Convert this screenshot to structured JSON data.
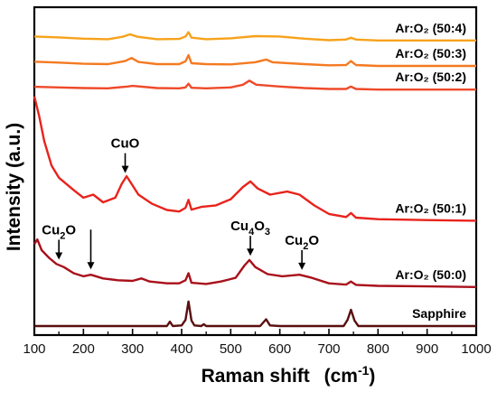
{
  "chart_data": {
    "type": "line",
    "xlabel": "Raman shift",
    "xlabel_unit": "(cm",
    "xlabel_exp": "-1",
    "xlabel_close": ")",
    "ylabel": "Intensity (a.u.)",
    "xlim": [
      100,
      1000
    ],
    "xticks": [
      100,
      200,
      300,
      400,
      500,
      600,
      700,
      800,
      900,
      1000
    ],
    "yticks_shown": false,
    "grid": false,
    "legend": "none (series labeled at right end of each trace)",
    "series": [
      {
        "name": "Ar:O₂ (50:4)",
        "color": "#f7a21b",
        "offset": 0.93,
        "points": [
          [
            100,
            0.013
          ],
          [
            150,
            0.01
          ],
          [
            200,
            0.006
          ],
          [
            250,
            0.004
          ],
          [
            280,
            0.012
          ],
          [
            295,
            0.02
          ],
          [
            310,
            0.012
          ],
          [
            350,
            0.004
          ],
          [
            395,
            0.005
          ],
          [
            408,
            0.013
          ],
          [
            414,
            0.027
          ],
          [
            420,
            0.009
          ],
          [
            450,
            0.004
          ],
          [
            500,
            0.007
          ],
          [
            550,
            0.014
          ],
          [
            600,
            0.013
          ],
          [
            650,
            0.006
          ],
          [
            700,
            0.001
          ],
          [
            735,
            0.003
          ],
          [
            745,
            0.009
          ],
          [
            755,
            0.003
          ],
          [
            800,
            0.0
          ],
          [
            900,
            0.0
          ],
          [
            1000,
            0.0
          ]
        ]
      },
      {
        "name": "Ar:O₂ (50:3)",
        "color": "#f47a21",
        "offset": 0.847,
        "points": [
          [
            100,
            0.014
          ],
          [
            150,
            0.011
          ],
          [
            200,
            0.007
          ],
          [
            250,
            0.006
          ],
          [
            285,
            0.016
          ],
          [
            298,
            0.026
          ],
          [
            312,
            0.013
          ],
          [
            350,
            0.006
          ],
          [
            395,
            0.006
          ],
          [
            408,
            0.015
          ],
          [
            414,
            0.035
          ],
          [
            420,
            0.009
          ],
          [
            450,
            0.006
          ],
          [
            500,
            0.005
          ],
          [
            550,
            0.012
          ],
          [
            572,
            0.021
          ],
          [
            585,
            0.012
          ],
          [
            650,
            0.006
          ],
          [
            700,
            0.002
          ],
          [
            735,
            0.003
          ],
          [
            745,
            0.016
          ],
          [
            755,
            0.003
          ],
          [
            800,
            0.0
          ],
          [
            900,
            0.0
          ],
          [
            1000,
            0.0
          ]
        ]
      },
      {
        "name": "Ar:O₂ (50:2)",
        "color": "#ee4a2a",
        "offset": 0.77,
        "points": [
          [
            100,
            0.009
          ],
          [
            150,
            0.007
          ],
          [
            200,
            0.005
          ],
          [
            250,
            0.004
          ],
          [
            290,
            0.01
          ],
          [
            300,
            0.012
          ],
          [
            350,
            0.005
          ],
          [
            395,
            0.004
          ],
          [
            408,
            0.007
          ],
          [
            414,
            0.019
          ],
          [
            420,
            0.006
          ],
          [
            450,
            0.004
          ],
          [
            500,
            0.007
          ],
          [
            525,
            0.016
          ],
          [
            538,
            0.029
          ],
          [
            552,
            0.016
          ],
          [
            600,
            0.01
          ],
          [
            650,
            0.005
          ],
          [
            700,
            0.002
          ],
          [
            735,
            0.002
          ],
          [
            745,
            0.01
          ],
          [
            755,
            0.002
          ],
          [
            800,
            0.0
          ],
          [
            900,
            0.0
          ],
          [
            1000,
            0.0
          ]
        ]
      },
      {
        "name": "Ar:O₂ (50:1)",
        "color": "#e8231c",
        "offset": 0.343,
        "points": [
          [
            100,
            0.405
          ],
          [
            110,
            0.34
          ],
          [
            120,
            0.26
          ],
          [
            135,
            0.18
          ],
          [
            150,
            0.14
          ],
          [
            165,
            0.12
          ],
          [
            180,
            0.1
          ],
          [
            200,
            0.075
          ],
          [
            220,
            0.085
          ],
          [
            240,
            0.06
          ],
          [
            265,
            0.075
          ],
          [
            278,
            0.12
          ],
          [
            288,
            0.145
          ],
          [
            298,
            0.12
          ],
          [
            312,
            0.085
          ],
          [
            340,
            0.055
          ],
          [
            370,
            0.035
          ],
          [
            395,
            0.03
          ],
          [
            408,
            0.042
          ],
          [
            414,
            0.068
          ],
          [
            420,
            0.036
          ],
          [
            440,
            0.045
          ],
          [
            470,
            0.05
          ],
          [
            500,
            0.07
          ],
          [
            525,
            0.11
          ],
          [
            540,
            0.128
          ],
          [
            555,
            0.105
          ],
          [
            580,
            0.085
          ],
          [
            615,
            0.095
          ],
          [
            640,
            0.085
          ],
          [
            670,
            0.05
          ],
          [
            700,
            0.022
          ],
          [
            735,
            0.012
          ],
          [
            745,
            0.025
          ],
          [
            755,
            0.01
          ],
          [
            800,
            0.005
          ],
          [
            900,
            0.002
          ],
          [
            1000,
            0.0
          ]
        ]
      },
      {
        "name": "Ar:O₂ (50:0)",
        "color": "#a8101b",
        "offset": 0.127,
        "points": [
          [
            100,
            0.14
          ],
          [
            106,
            0.155
          ],
          [
            115,
            0.12
          ],
          [
            130,
            0.095
          ],
          [
            145,
            0.075
          ],
          [
            160,
            0.065
          ],
          [
            180,
            0.045
          ],
          [
            200,
            0.035
          ],
          [
            215,
            0.04
          ],
          [
            240,
            0.028
          ],
          [
            270,
            0.022
          ],
          [
            300,
            0.02
          ],
          [
            318,
            0.028
          ],
          [
            335,
            0.018
          ],
          [
            370,
            0.012
          ],
          [
            395,
            0.012
          ],
          [
            408,
            0.022
          ],
          [
            414,
            0.045
          ],
          [
            420,
            0.014
          ],
          [
            450,
            0.01
          ],
          [
            480,
            0.018
          ],
          [
            510,
            0.03
          ],
          [
            528,
            0.07
          ],
          [
            538,
            0.088
          ],
          [
            550,
            0.065
          ],
          [
            575,
            0.042
          ],
          [
            605,
            0.035
          ],
          [
            640,
            0.04
          ],
          [
            665,
            0.03
          ],
          [
            700,
            0.012
          ],
          [
            735,
            0.008
          ],
          [
            745,
            0.018
          ],
          [
            755,
            0.007
          ],
          [
            800,
            0.004
          ],
          [
            900,
            0.002
          ],
          [
            1000,
            0.0
          ]
        ]
      },
      {
        "name": "Sapphire",
        "color": "#5a0f0f",
        "offset": 0.0,
        "points": [
          [
            100,
            0.0
          ],
          [
            300,
            0.0
          ],
          [
            370,
            0.0
          ],
          [
            376,
            0.014
          ],
          [
            382,
            0.0
          ],
          [
            400,
            0.002
          ],
          [
            408,
            0.02
          ],
          [
            414,
            0.08
          ],
          [
            420,
            0.018
          ],
          [
            426,
            0.002
          ],
          [
            440,
            0.0
          ],
          [
            445,
            0.006
          ],
          [
            450,
            0.0
          ],
          [
            560,
            0.0
          ],
          [
            572,
            0.022
          ],
          [
            580,
            0.002
          ],
          [
            600,
            0.0
          ],
          [
            730,
            0.0
          ],
          [
            738,
            0.02
          ],
          [
            745,
            0.053
          ],
          [
            752,
            0.018
          ],
          [
            760,
            0.0
          ],
          [
            1000,
            0.0
          ]
        ]
      }
    ],
    "annotations": [
      {
        "text": "CuO",
        "x": 285,
        "points_to": "Ar:O₂ (50:1)"
      },
      {
        "text": "Cu",
        "sub": "2",
        "tail": "O",
        "x": 150,
        "points_to": "Ar:O₂ (50:0)"
      },
      {
        "text": "",
        "x": 215,
        "points_to": "Ar:O₂ (50:0)"
      },
      {
        "text": "Cu",
        "sub": "4",
        "tail": "O",
        "sub2": "3",
        "x": 540,
        "points_to": "Ar:O₂ (50:0)"
      },
      {
        "text": "Cu",
        "sub": "2",
        "tail": "O",
        "x": 645,
        "points_to": "Ar:O₂ (50:0)"
      }
    ]
  }
}
